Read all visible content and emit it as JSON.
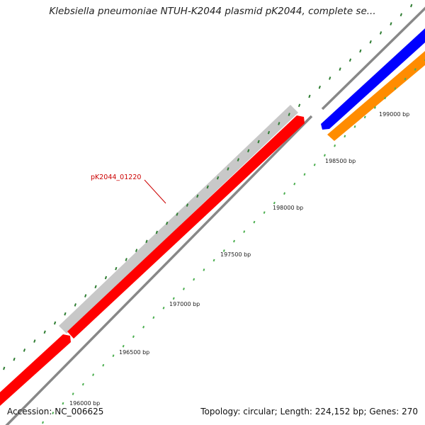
{
  "title": "Klebsiella pneumoniae NTUH-K2044 plasmid pK2044, complete se...",
  "gene_label": "pK2044_01220",
  "tick_labels": [
    "196000 bp",
    "196500 bp",
    "197000 bp",
    "197500 bp",
    "198000 bp",
    "198500 bp",
    "199000 bp"
  ],
  "footer": {
    "accession": "Accession: NC_006625",
    "stats": "Topology: circular; Length: 224,152 bp; Genes: 270"
  },
  "colors": {
    "backbone": "#888888",
    "tick_major": "#2e7d32",
    "tick_minor": "#4caf50",
    "gene_red": "#ff0000",
    "gene_gray": "#c8c8c8",
    "gene_blue": "#0000ff",
    "gene_orange": "#ff8c00",
    "label_red": "#cc0000"
  }
}
